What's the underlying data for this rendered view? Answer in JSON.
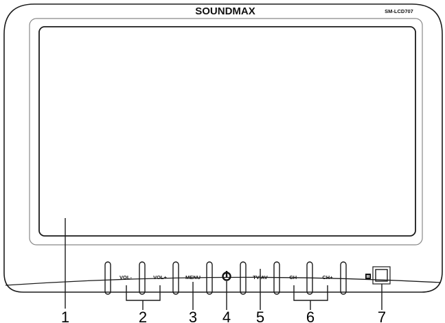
{
  "device": {
    "brand": "SOUNDMAX",
    "model": "SM-LCD707"
  },
  "buttons": {
    "vol_minus": "VOL-",
    "vol_plus": "VOL+",
    "menu": "MENU",
    "power_icon": "power-icon",
    "tv_av": "TV/AV",
    "ch_minus": "CH-",
    "ch_plus": "CH+",
    "ir_sensor_icon": "ir-sensor-icon"
  },
  "callouts": [
    "1",
    "2",
    "3",
    "4",
    "5",
    "6",
    "7"
  ],
  "colors": {
    "line": "#1a1a1a",
    "screen_bezel": "#888888",
    "background": "#ffffff"
  }
}
